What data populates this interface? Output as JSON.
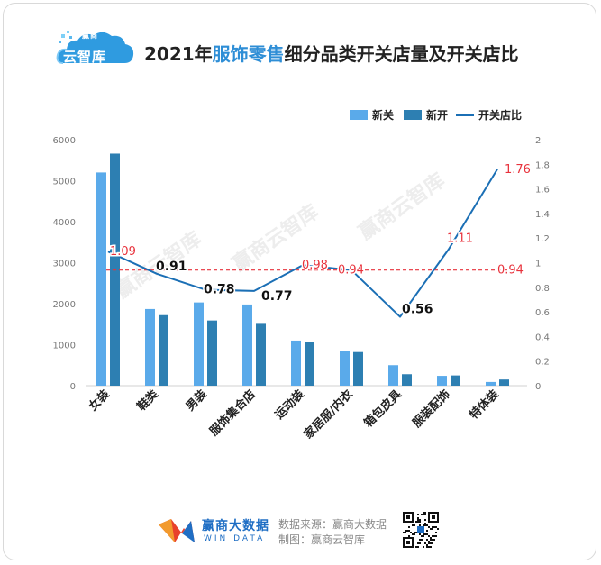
{
  "header": {
    "logo_top": "赢商",
    "logo_bottom": "云智库",
    "title_prefix": "2021年",
    "title_highlight": "服饰零售",
    "title_suffix": "细分品类开关店量及开关店比"
  },
  "colors": {
    "close_bar": "#5aaaea",
    "open_bar": "#2d7fb2",
    "ratio_line": "#1b6fb5",
    "avg_line": "#e8323c",
    "highlight": "#2e8ed6"
  },
  "chart_data": {
    "type": "bar",
    "categories": [
      "女装",
      "鞋类",
      "男装",
      "服饰集合店",
      "运动装",
      "家居服/内衣",
      "箱包皮具",
      "服装配饰",
      "特体装"
    ],
    "series": [
      {
        "name": "新关",
        "axis": "left",
        "values": [
          5200,
          1870,
          2030,
          1980,
          1100,
          850,
          500,
          240,
          90
        ]
      },
      {
        "name": "新开",
        "axis": "left",
        "values": [
          5660,
          1720,
          1590,
          1530,
          1070,
          820,
          280,
          250,
          150
        ]
      },
      {
        "name": "开关店比",
        "type": "line",
        "axis": "right",
        "values": [
          1.09,
          0.91,
          0.78,
          0.77,
          0.98,
          0.94,
          0.56,
          1.11,
          1.76
        ]
      }
    ],
    "ratio_labels": [
      "1.09",
      "0.91",
      "0.78",
      "0.77",
      "0.98",
      "0.94",
      "0.56",
      "1.11",
      "1.76"
    ],
    "average_line": {
      "value": 0.94,
      "label": "0.94"
    },
    "y_left": {
      "ylim": [
        0,
        6000
      ],
      "ticks": [
        "0",
        "1000",
        "2000",
        "3000",
        "4000",
        "5000",
        "6000"
      ]
    },
    "y_right": {
      "ylim": [
        0,
        2
      ],
      "ticks": [
        "0",
        "0.2",
        "0.4",
        "0.6",
        "0.8",
        "1",
        "1.2",
        "1.4",
        "1.6",
        "1.8",
        "2"
      ]
    },
    "legend": {
      "position": "top-right"
    },
    "grid": false,
    "watermark": "赢商云智库"
  },
  "footer": {
    "brand": "赢商大数据",
    "brand_en": "WIN DATA",
    "source": "数据来源：赢商大数据",
    "maker": "制图：赢商云智库"
  }
}
